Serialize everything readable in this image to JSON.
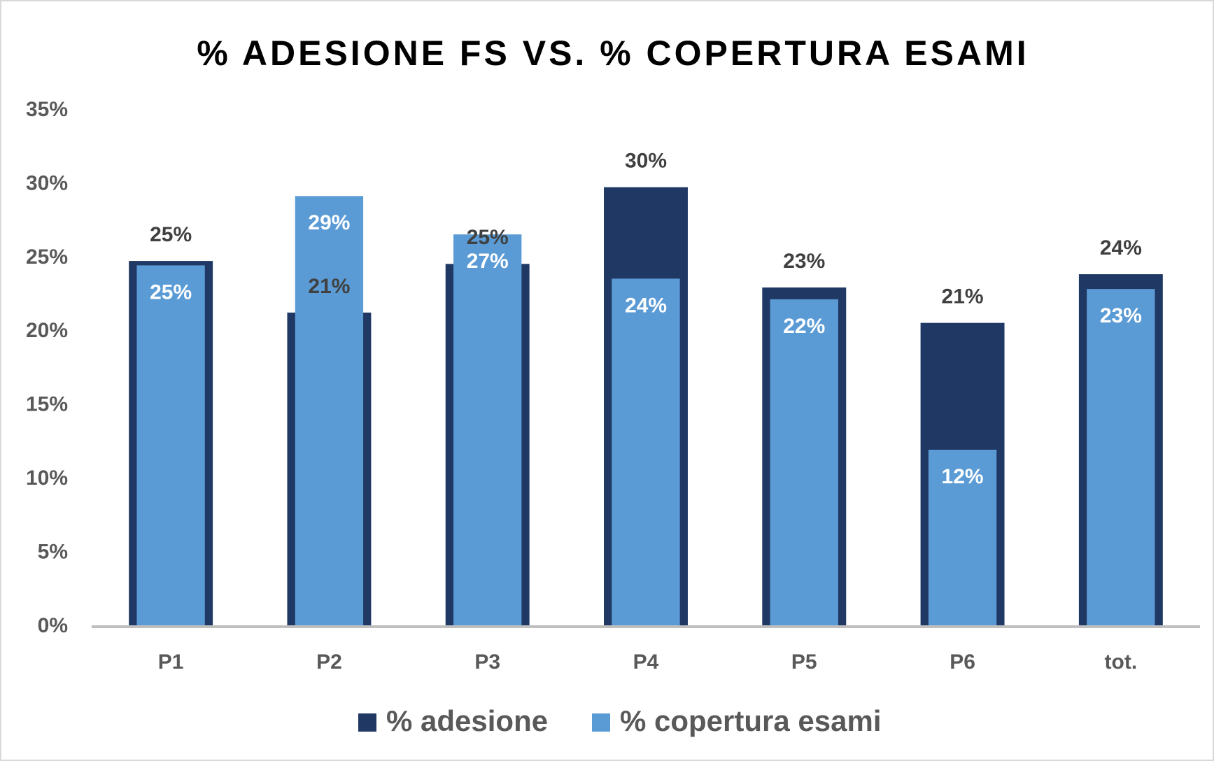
{
  "chart_data": {
    "type": "bar",
    "title": "% ADESIONE FS VS. % COPERTURA ESAMI",
    "categories": [
      "P1",
      "P2",
      "P3",
      "P4",
      "P5",
      "P6",
      "tot."
    ],
    "series": [
      {
        "name": "% adesione",
        "color": "#203864",
        "values": [
          24.8,
          21.3,
          24.6,
          29.8,
          23.0,
          20.6,
          23.9
        ],
        "value_labels": [
          "25%",
          "21%",
          "25%",
          "30%",
          "23%",
          "21%",
          "24%"
        ]
      },
      {
        "name": "% copertura esami",
        "color": "#5b9bd5",
        "values": [
          24.5,
          29.2,
          26.6,
          23.6,
          22.2,
          12.0,
          22.9
        ],
        "value_labels": [
          "25%",
          "29%",
          "27%",
          "24%",
          "22%",
          "12%",
          "23%"
        ]
      }
    ],
    "ylim": [
      0,
      35
    ],
    "yticks": [
      {
        "value": 0,
        "label": "0%"
      },
      {
        "value": 5,
        "label": "5%"
      },
      {
        "value": 10,
        "label": "10%"
      },
      {
        "value": 15,
        "label": "15%"
      },
      {
        "value": 20,
        "label": "20%"
      },
      {
        "value": 25,
        "label": "25%"
      },
      {
        "value": 30,
        "label": "30%"
      },
      {
        "value": 35,
        "label": "35%"
      }
    ],
    "grid": false,
    "legend": "bottom"
  }
}
